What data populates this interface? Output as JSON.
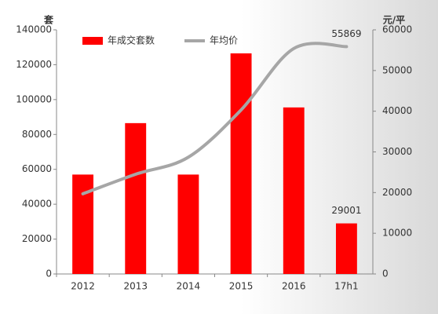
{
  "chart_data": {
    "type": "bar-line",
    "y_label": "套",
    "y2_label": "元/平",
    "categories": [
      "2012",
      "2013",
      "2014",
      "2015",
      "2016",
      "17h1"
    ],
    "series": [
      {
        "name": "年成交套数",
        "type": "bar",
        "color": "#ff0000",
        "values": [
          57000,
          86500,
          57000,
          126500,
          95500,
          29001
        ]
      },
      {
        "name": "年均价",
        "type": "line",
        "axis": "y2",
        "color": "#a6a6a6",
        "values": [
          19700,
          24500,
          28700,
          40300,
          55400,
          55869
        ]
      }
    ],
    "data_labels": [
      {
        "series": 0,
        "index": 5
      },
      {
        "series": 1,
        "index": 5
      }
    ],
    "ylim": [
      0,
      140000
    ],
    "yticks": [
      0,
      20000,
      40000,
      60000,
      80000,
      100000,
      120000,
      140000
    ],
    "y2lim": [
      0,
      60000
    ],
    "y2ticks": [
      0,
      10000,
      20000,
      30000,
      40000,
      50000,
      60000
    ],
    "grid": false
  }
}
